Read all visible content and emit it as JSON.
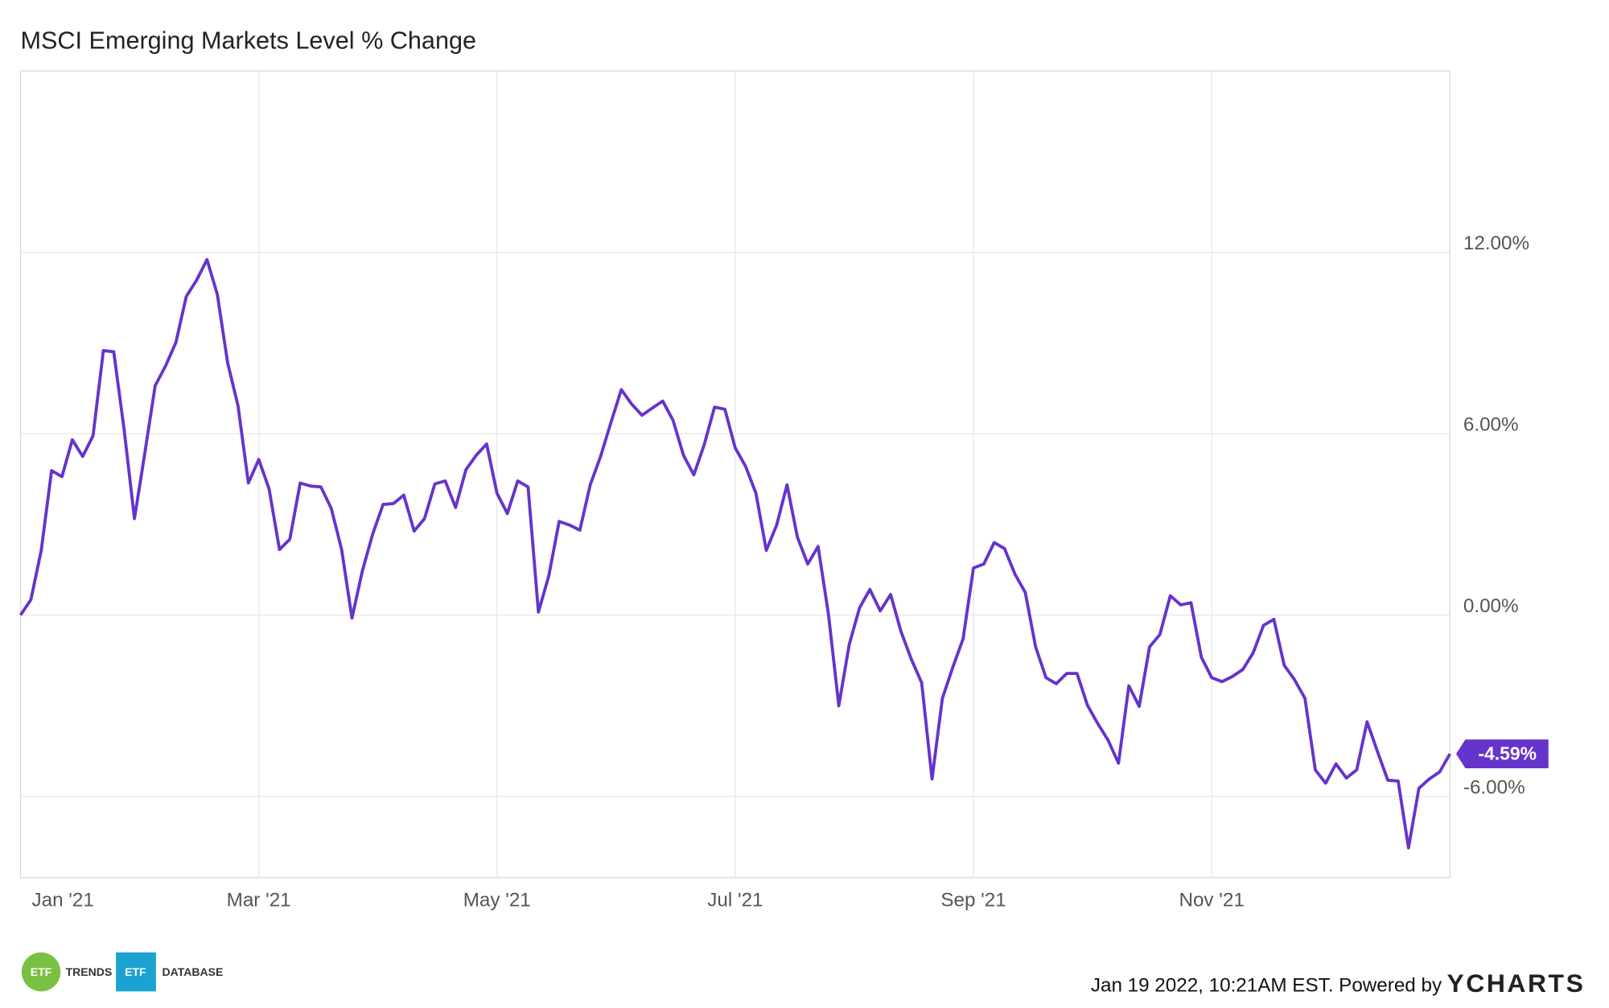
{
  "chart_data": {
    "type": "line",
    "title": "MSCI Emerging Markets Level % Change",
    "categories": [
      "Jan '21",
      null,
      null,
      null,
      null,
      null,
      null,
      null,
      null,
      null,
      null,
      null,
      null,
      null,
      null,
      null,
      null,
      null,
      null,
      null,
      null,
      null,
      null,
      "Mar '21",
      null,
      null,
      null,
      null,
      null,
      null,
      null,
      null,
      null,
      null,
      null,
      null,
      null,
      null,
      null,
      null,
      null,
      null,
      null,
      null,
      null,
      null,
      "May '21",
      null,
      null,
      null,
      null,
      null,
      null,
      null,
      null,
      null,
      null,
      null,
      null,
      null,
      null,
      null,
      null,
      null,
      null,
      null,
      null,
      null,
      null,
      "Jul '21",
      null,
      null,
      null,
      null,
      null,
      null,
      null,
      null,
      null,
      null,
      null,
      null,
      null,
      null,
      null,
      null,
      null,
      null,
      null,
      null,
      null,
      null,
      "Sep '21",
      null,
      null,
      null,
      null,
      null,
      null,
      null,
      null,
      null,
      null,
      null,
      null,
      null,
      null,
      null,
      null,
      null,
      null,
      null,
      null,
      null,
      null,
      "Nov '21",
      null,
      null,
      null,
      null,
      null,
      null,
      null,
      null,
      null,
      null,
      null,
      null,
      null,
      null,
      null,
      null,
      null,
      null,
      null,
      null,
      null,
      null,
      null
    ],
    "series": [
      {
        "name": "MSCI Emerging Markets Level % Change",
        "color": "#6633cc",
        "values": [
          0,
          0.51,
          2.14,
          4.78,
          4.58,
          5.8,
          5.25,
          5.93,
          8.75,
          8.71,
          6.14,
          3.19,
          5.36,
          7.59,
          8.24,
          9.02,
          10.54,
          11.08,
          11.76,
          10.61,
          8.34,
          6.92,
          4.37,
          5.15,
          4.17,
          2.17,
          2.51,
          4.37,
          4.27,
          4.24,
          3.53,
          2.17,
          -0.1,
          1.46,
          2.68,
          3.66,
          3.69,
          3.97,
          2.78,
          3.19,
          4.34,
          4.44,
          3.56,
          4.81,
          5.29,
          5.66,
          4.03,
          3.36,
          4.44,
          4.24,
          0.1,
          1.3,
          3.1,
          2.98,
          2.81,
          4.31,
          5.25,
          6.37,
          7.46,
          6.98,
          6.61,
          6.85,
          7.08,
          6.44,
          5.29,
          4.64,
          5.63,
          6.88,
          6.81,
          5.53,
          4.92,
          4.03,
          2.14,
          2.98,
          4.31,
          2.58,
          1.69,
          2.27,
          0.03,
          -3.0,
          -0.98,
          0.24,
          0.85,
          0.14,
          0.68,
          -0.54,
          -1.46,
          -2.24,
          -5.42,
          -2.75,
          -1.73,
          -0.78,
          1.56,
          1.69,
          2.4,
          2.2,
          1.36,
          0.75,
          -1.05,
          -2.07,
          -2.27,
          -1.93,
          -1.93,
          -2.98,
          -3.59,
          -4.14,
          -4.9,
          -2.34,
          -3.02,
          -1.05,
          -0.64,
          0.64,
          0.34,
          0.41,
          -1.39,
          -2.07,
          -2.2,
          -2.03,
          -1.8,
          -1.25,
          -0.34,
          -0.14,
          -1.66,
          -2.14,
          -2.75,
          -5.12,
          -5.56,
          -4.92,
          -5.39,
          -5.12,
          -3.53,
          -4.51,
          -5.46,
          -5.49,
          -7.7,
          -5.73,
          -5.42,
          -5.19,
          -4.59
        ],
        "value_labels": [
          null,
          null,
          null,
          null,
          null,
          null,
          null,
          null,
          null,
          null,
          null,
          null,
          null,
          null,
          null,
          null,
          null,
          null,
          null,
          null,
          null,
          null,
          null,
          null,
          null,
          null,
          null,
          null,
          null,
          null,
          null,
          null,
          null,
          null,
          null,
          null,
          null,
          null,
          null,
          null,
          null,
          null,
          null,
          null,
          null,
          null,
          null,
          null,
          null,
          null,
          null,
          null,
          null,
          null,
          null,
          null,
          null,
          null,
          null,
          null,
          null,
          null,
          null,
          null,
          null,
          null,
          null,
          null,
          null,
          null,
          null,
          null,
          null,
          null,
          null,
          null,
          null,
          null,
          null,
          null,
          null,
          null,
          null,
          null,
          null,
          null,
          null,
          null,
          null,
          null,
          null,
          null,
          null,
          null,
          null,
          null,
          null,
          null,
          null,
          null,
          null,
          null,
          null,
          null,
          null,
          null,
          null,
          null,
          null,
          null,
          null,
          null,
          null,
          null,
          null,
          null,
          null,
          null,
          null,
          null,
          null,
          null,
          null,
          null,
          null,
          null,
          null,
          null,
          null,
          null,
          null,
          null,
          null,
          null,
          null,
          null,
          null,
          null,
          "-4.59%"
        ]
      }
    ],
    "ylim": [
      -8.68,
      18
    ],
    "yticks": [
      {
        "value": -6,
        "label": "-6.00%"
      },
      {
        "value": 0,
        "label": "0.00%"
      },
      {
        "value": 6,
        "label": "6.00%"
      },
      {
        "value": 12,
        "label": "12.00%"
      }
    ],
    "grid": true
  },
  "footer": {
    "timestamp": "Jan 19 2022, 10:21AM EST. Powered by",
    "brand": "YCHARTS",
    "logos": [
      "ETF",
      "TRENDS",
      "ETF",
      "DATABASE"
    ]
  }
}
